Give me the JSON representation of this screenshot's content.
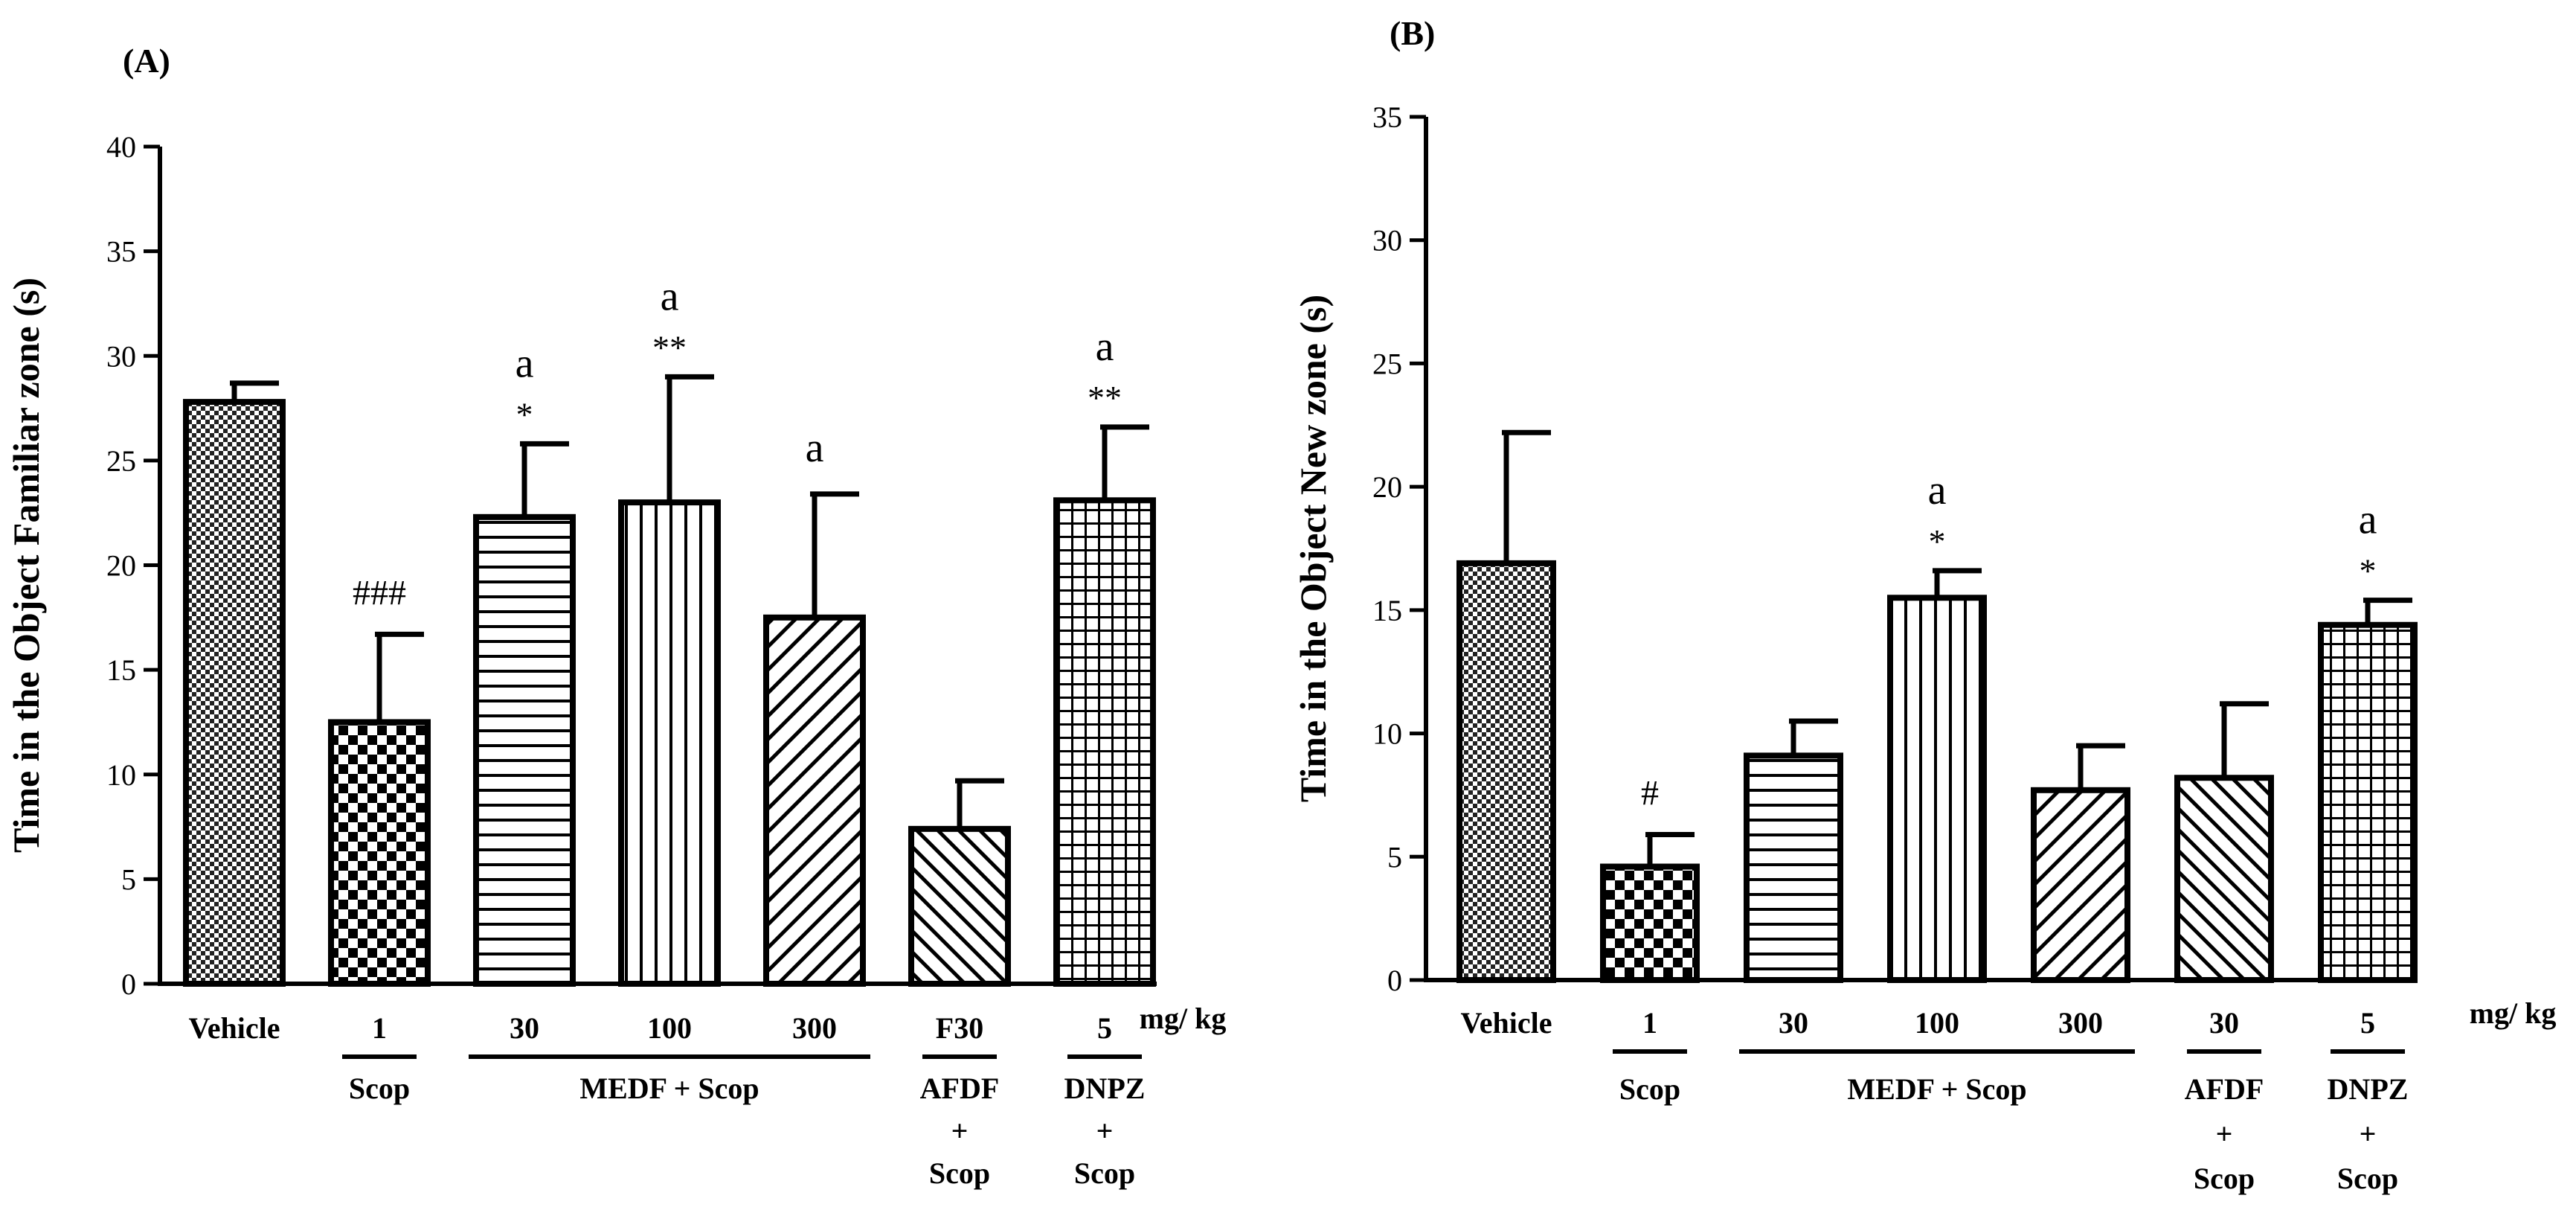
{
  "chart_data": [
    {
      "type": "bar",
      "panel_label": "(A)",
      "ylabel": "Time in the Object Familiar zone (s)",
      "ylim": [
        0,
        40
      ],
      "yticks": [
        0,
        5,
        10,
        15,
        20,
        25,
        30,
        35,
        40
      ],
      "unit_label": "mg/ kg",
      "categories": [
        "Vehicle",
        "1",
        "30",
        "100",
        "300",
        "F30",
        "5"
      ],
      "values": [
        27.8,
        12.5,
        22.3,
        23.0,
        17.5,
        7.4,
        23.1
      ],
      "errors": [
        0.9,
        4.2,
        3.5,
        6.0,
        5.9,
        2.3,
        3.5
      ],
      "patterns": [
        "dots",
        "checker",
        "hlines",
        "vlines",
        "diag-right",
        "diag-left",
        "grid"
      ],
      "annotations_sig": [
        "",
        "###",
        "*",
        "**",
        "",
        "",
        "**"
      ],
      "annotations_a": [
        "",
        "",
        "a",
        "a",
        "a",
        "",
        "a"
      ],
      "groups": [
        {
          "label_lines": [
            "Scop"
          ],
          "from": 1,
          "to": 1
        },
        {
          "label_lines": [
            "MEDF + Scop"
          ],
          "from": 2,
          "to": 4
        },
        {
          "label_lines": [
            "AFDF",
            "+",
            "Scop"
          ],
          "from": 5,
          "to": 5
        },
        {
          "label_lines": [
            "DNPZ",
            "+",
            "Scop"
          ],
          "from": 6,
          "to": 6
        }
      ]
    },
    {
      "type": "bar",
      "panel_label": "(B)",
      "ylabel": "Time in the Object New zone (s)",
      "ylim": [
        0,
        35
      ],
      "yticks": [
        0,
        5,
        10,
        15,
        20,
        25,
        30,
        35
      ],
      "unit_label": "mg/ kg",
      "categories": [
        "Vehicle",
        "1",
        "30",
        "100",
        "300",
        "30",
        "5"
      ],
      "values": [
        16.9,
        4.6,
        9.1,
        15.5,
        7.7,
        8.2,
        14.4
      ],
      "errors": [
        5.3,
        1.3,
        1.4,
        1.1,
        1.8,
        3.0,
        1.0
      ],
      "patterns": [
        "dots",
        "checker",
        "hlines",
        "vlines",
        "diag-right",
        "diag-left",
        "grid"
      ],
      "annotations_sig": [
        "",
        "#",
        "",
        "*",
        "",
        "",
        "*"
      ],
      "annotations_a": [
        "",
        "",
        "",
        "a",
        "",
        "",
        "a"
      ],
      "groups": [
        {
          "label_lines": [
            "Scop"
          ],
          "from": 1,
          "to": 1
        },
        {
          "label_lines": [
            "MEDF + Scop"
          ],
          "from": 2,
          "to": 4
        },
        {
          "label_lines": [
            "AFDF",
            "+",
            "Scop"
          ],
          "from": 5,
          "to": 5
        },
        {
          "label_lines": [
            "DNPZ",
            "+",
            "Scop"
          ],
          "from": 6,
          "to": 6
        }
      ]
    }
  ]
}
